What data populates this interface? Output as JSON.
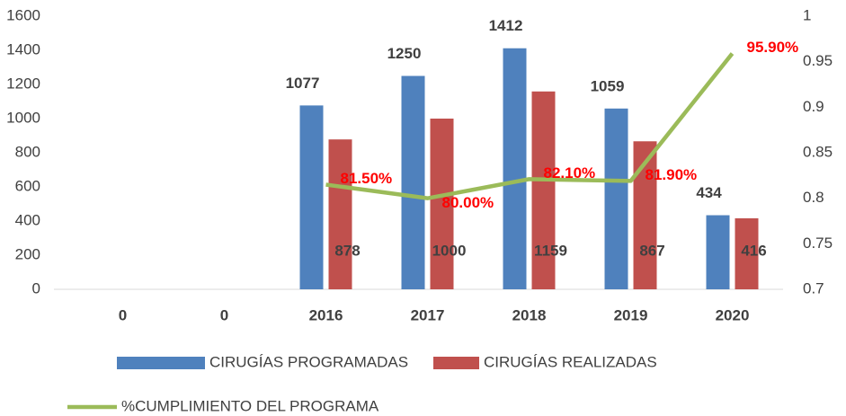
{
  "chart_data": {
    "type": "bar",
    "categories": [
      "0",
      "0",
      "2016",
      "2017",
      "2018",
      "2019",
      "2020"
    ],
    "series": [
      {
        "name": "CIRUGÍAS PROGRAMADAS",
        "type": "bar",
        "color": "#4f81bd",
        "values": [
          null,
          null,
          1077,
          1250,
          1412,
          1059,
          434
        ]
      },
      {
        "name": "CIRUGÍAS REALIZADAS",
        "type": "bar",
        "color": "#c0504d",
        "values": [
          null,
          null,
          878,
          1000,
          1159,
          867,
          416
        ]
      },
      {
        "name": "%CUMPLIMIENTO DEL PROGRAMA",
        "type": "line",
        "axis": "y2",
        "color": "#9bbb59",
        "values": [
          null,
          null,
          0.815,
          0.8,
          0.821,
          0.819,
          0.959
        ],
        "value_labels": [
          null,
          null,
          "81.50%",
          "80.00%",
          "82.10%",
          "81.90%",
          "95.90%"
        ]
      }
    ],
    "ylim": [
      0,
      1600
    ],
    "yticks": [
      0,
      200,
      400,
      600,
      800,
      1000,
      1200,
      1400,
      1600
    ],
    "y2lim": [
      0.7,
      1
    ],
    "y2ticks": [
      0.7,
      0.75,
      0.8,
      0.85,
      0.9,
      0.95,
      1
    ],
    "grid": false,
    "legend": "bottom"
  }
}
